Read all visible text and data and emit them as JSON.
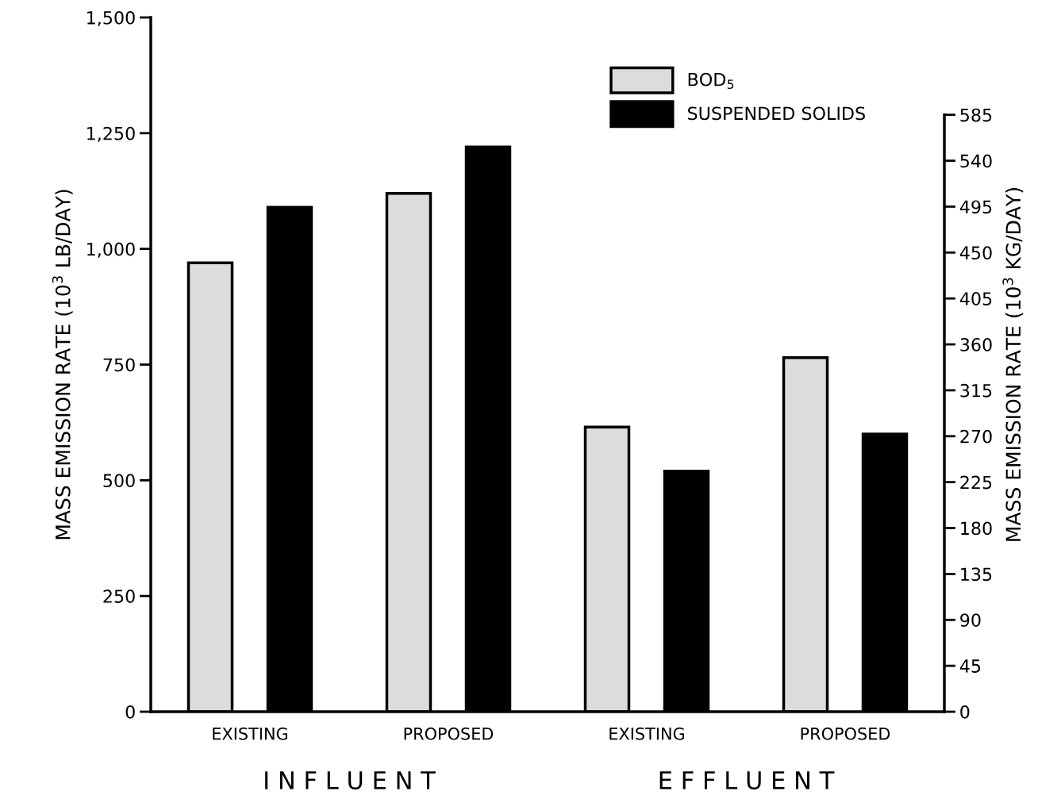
{
  "chart_data": {
    "type": "bar",
    "categories": [
      "EXISTING",
      "PROPOSED",
      "EXISTING",
      "PROPOSED"
    ],
    "series": [
      {
        "name": "BOD$_{5}$",
        "color": "#dcdcdc",
        "values": [
          970,
          1120,
          615,
          765
        ]
      },
      {
        "name": "SUSPENDED SOLIDS",
        "color": "#000000",
        "values": [
          1090,
          1220,
          520,
          600
        ]
      }
    ],
    "ylabel": "MASS EMISSION RATE (10$^{3}$ LB/DAY)",
    "y2label": "MASS EMISSION RATE (10$^{3}$ KG/DAY)",
    "ylim": [
      0,
      1500
    ],
    "yticks": [
      0,
      250,
      500,
      750,
      {
        "value": 1000,
        "label": "1,000"
      },
      {
        "value": 1250,
        "label": "1,250"
      },
      {
        "value": 1500,
        "label": "1,500"
      }
    ],
    "y2lim": [
      0,
      680.4
    ],
    "y2ticks": [
      0,
      45,
      90,
      135,
      180,
      225,
      270,
      315,
      360,
      405,
      450,
      495,
      540,
      585
    ],
    "annotations": [
      "I N F L U E N T",
      "E F F L U E N T"
    ],
    "legend": "top right",
    "grid": false
  }
}
